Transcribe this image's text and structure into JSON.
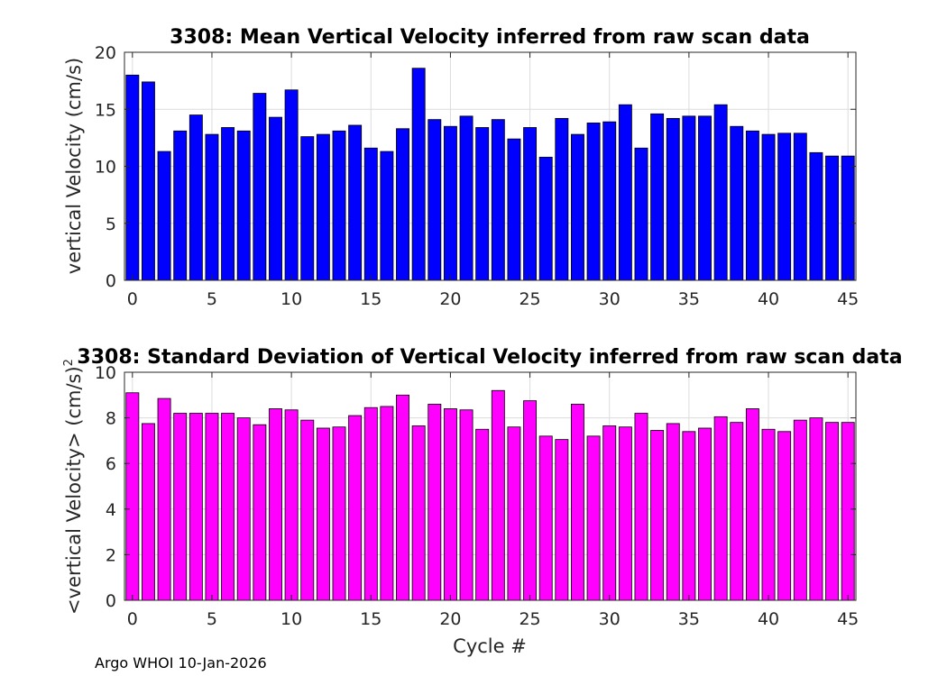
{
  "footer": "Argo WHOI 10-Jan-2026",
  "chart_data": [
    {
      "type": "bar",
      "title": "3308: Mean Vertical Velocity inferred from raw scan data",
      "xlabel": "",
      "ylabel": "vertical Velocity (cm/s)",
      "bar_color": "#0000ff",
      "xlim": [
        -0.5,
        45.5
      ],
      "ylim": [
        0,
        20
      ],
      "xticks": [
        0,
        5,
        10,
        15,
        20,
        25,
        30,
        35,
        40,
        45
      ],
      "yticks": [
        0,
        5,
        10,
        15,
        20
      ],
      "grid": true,
      "x": [
        0,
        1,
        2,
        3,
        4,
        5,
        6,
        7,
        8,
        9,
        10,
        11,
        12,
        13,
        14,
        15,
        16,
        17,
        18,
        19,
        20,
        21,
        22,
        23,
        24,
        25,
        26,
        27,
        28,
        29,
        30,
        31,
        32,
        33,
        34,
        35,
        36,
        37,
        38,
        39,
        40,
        41,
        42,
        43,
        44,
        45
      ],
      "values": [
        18.0,
        17.4,
        11.3,
        13.1,
        14.5,
        12.8,
        13.4,
        13.1,
        16.4,
        14.3,
        16.7,
        12.6,
        12.8,
        13.1,
        13.6,
        11.6,
        11.3,
        13.3,
        18.6,
        14.1,
        13.5,
        14.4,
        13.4,
        14.1,
        12.4,
        13.4,
        10.8,
        14.2,
        12.8,
        13.8,
        13.9,
        15.4,
        11.6,
        14.6,
        14.2,
        14.4,
        14.4,
        15.4,
        13.5,
        13.1,
        12.8,
        12.9,
        12.9,
        11.2,
        10.9,
        10.9
      ]
    },
    {
      "type": "bar",
      "title": "3308: Standard Deviation of Vertical Velocity inferred from raw scan data",
      "xlabel": "Cycle #",
      "ylabel": "<vertical Velocity> (cm/s)",
      "ylabel_superscript": "2",
      "bar_color": "#ff00ff",
      "xlim": [
        -0.5,
        45.5
      ],
      "ylim": [
        0,
        10
      ],
      "xticks": [
        0,
        5,
        10,
        15,
        20,
        25,
        30,
        35,
        40,
        45
      ],
      "yticks": [
        0,
        2,
        4,
        6,
        8,
        10
      ],
      "grid": true,
      "x": [
        0,
        1,
        2,
        3,
        4,
        5,
        6,
        7,
        8,
        9,
        10,
        11,
        12,
        13,
        14,
        15,
        16,
        17,
        18,
        19,
        20,
        21,
        22,
        23,
        24,
        25,
        26,
        27,
        28,
        29,
        30,
        31,
        32,
        33,
        34,
        35,
        36,
        37,
        38,
        39,
        40,
        41,
        42,
        43,
        44,
        45
      ],
      "values": [
        9.1,
        7.75,
        8.85,
        8.2,
        8.2,
        8.2,
        8.2,
        8.0,
        7.7,
        8.4,
        8.35,
        7.9,
        7.55,
        7.6,
        8.1,
        8.45,
        8.5,
        9.0,
        7.65,
        8.6,
        8.4,
        8.35,
        7.5,
        9.2,
        7.6,
        8.75,
        7.2,
        7.05,
        8.6,
        7.2,
        7.65,
        7.6,
        8.2,
        7.45,
        7.75,
        7.4,
        7.55,
        8.05,
        7.8,
        8.4,
        7.5,
        7.4,
        7.9,
        8.0,
        7.8,
        7.8
      ]
    }
  ]
}
